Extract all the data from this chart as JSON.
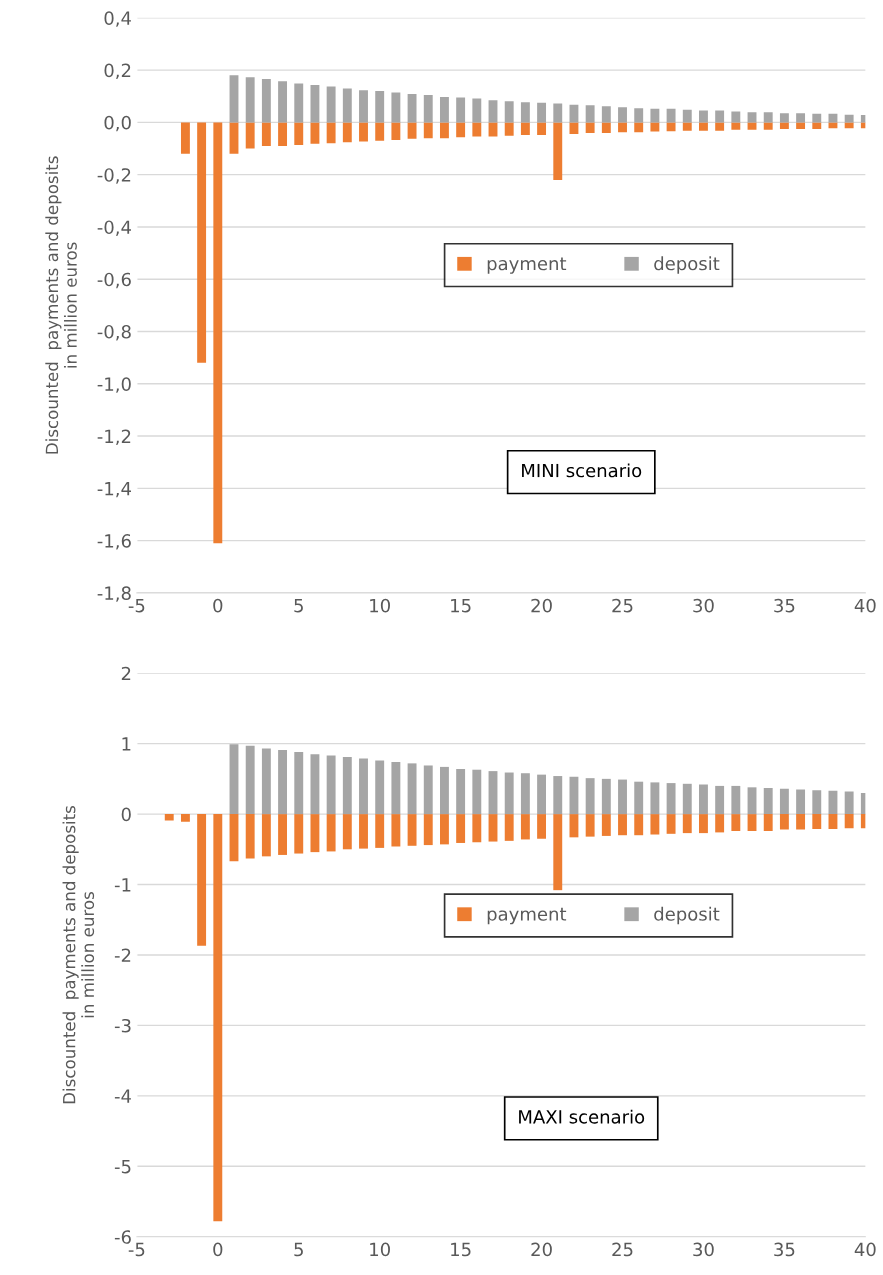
{
  "chart_data": [
    {
      "type": "bar",
      "ylabel": "Discounted  payments and deposits\nin million euros",
      "annotations": [
        "MINI scenario"
      ],
      "legend": "center",
      "grid": "y",
      "xlim": [
        -5,
        40
      ],
      "xticks": [
        -5,
        0,
        5,
        10,
        15,
        20,
        25,
        30,
        35,
        40
      ],
      "ylim": [
        -1.8,
        0.4
      ],
      "yticks": [
        {
          "value": -1.8,
          "label": "-1,8"
        },
        {
          "value": -1.6,
          "label": "-1,6"
        },
        {
          "value": -1.4,
          "label": "-1,4"
        },
        {
          "value": -1.2,
          "label": "-1,2"
        },
        {
          "value": -1.0,
          "label": "-1,0"
        },
        {
          "value": -0.8,
          "label": "-0,8"
        },
        {
          "value": -0.6,
          "label": "-0,6"
        },
        {
          "value": -0.4,
          "label": "-0,4"
        },
        {
          "value": -0.2,
          "label": "-0,2"
        },
        {
          "value": 0,
          "label": "0,0"
        },
        {
          "value": 0.2,
          "label": "0,2"
        },
        {
          "value": 0.4,
          "label": "0,4"
        }
      ],
      "series": [
        {
          "name": "payment",
          "color": "#ed7d31",
          "x": [
            -2,
            -1,
            0,
            1,
            2,
            3,
            4,
            5,
            6,
            7,
            8,
            9,
            10,
            11,
            12,
            13,
            14,
            15,
            16,
            17,
            18,
            19,
            20,
            21,
            22,
            23,
            24,
            25,
            26,
            27,
            28,
            29,
            30,
            31,
            32,
            33,
            34,
            35,
            36,
            37,
            38,
            39,
            40
          ],
          "values": [
            -0.12,
            -0.92,
            -1.61,
            -0.12,
            -0.1,
            -0.09,
            -0.09,
            -0.086,
            -0.082,
            -0.08,
            -0.076,
            -0.073,
            -0.07,
            -0.067,
            -0.063,
            -0.061,
            -0.061,
            -0.057,
            -0.054,
            -0.054,
            -0.051,
            -0.048,
            -0.048,
            -0.22,
            -0.044,
            -0.041,
            -0.041,
            -0.038,
            -0.038,
            -0.035,
            -0.034,
            -0.032,
            -0.032,
            -0.032,
            -0.028,
            -0.028,
            -0.028,
            -0.025,
            -0.025,
            -0.025,
            -0.022,
            -0.022,
            -0.022
          ]
        },
        {
          "name": "deposit",
          "color": "#a5a5a5",
          "x": [
            1,
            2,
            3,
            4,
            5,
            6,
            7,
            8,
            9,
            10,
            11,
            12,
            13,
            14,
            15,
            16,
            17,
            18,
            19,
            20,
            21,
            22,
            23,
            24,
            25,
            26,
            27,
            28,
            29,
            30,
            31,
            32,
            33,
            34,
            35,
            36,
            37,
            38,
            39,
            40
          ],
          "values": [
            0.18,
            0.173,
            0.166,
            0.157,
            0.149,
            0.143,
            0.137,
            0.13,
            0.123,
            0.12,
            0.114,
            0.109,
            0.105,
            0.097,
            0.095,
            0.091,
            0.085,
            0.081,
            0.077,
            0.075,
            0.072,
            0.068,
            0.066,
            0.062,
            0.058,
            0.054,
            0.052,
            0.052,
            0.048,
            0.046,
            0.046,
            0.042,
            0.039,
            0.039,
            0.035,
            0.035,
            0.033,
            0.033,
            0.029,
            0.028
          ]
        }
      ]
    },
    {
      "type": "bar",
      "ylabel": "Discounted  payments and deposits\nin million euros",
      "annotations": [
        "MAXI scenario"
      ],
      "legend": "center",
      "grid": "y",
      "xlim": [
        -5,
        40
      ],
      "xticks": [
        -5,
        0,
        5,
        10,
        15,
        20,
        25,
        30,
        35,
        40
      ],
      "ylim": [
        -6,
        2
      ],
      "yticks": [
        -6,
        -5,
        -4,
        -3,
        -2,
        -1,
        0,
        1,
        2
      ],
      "series": [
        {
          "name": "payment",
          "color": "#ed7d31",
          "x": [
            -3,
            -2,
            -1,
            0,
            1,
            2,
            3,
            4,
            5,
            6,
            7,
            8,
            9,
            10,
            11,
            12,
            13,
            14,
            15,
            16,
            17,
            18,
            19,
            20,
            21,
            22,
            23,
            24,
            25,
            26,
            27,
            28,
            29,
            30,
            31,
            32,
            33,
            34,
            35,
            36,
            37,
            38,
            39,
            40
          ],
          "values": [
            -0.09,
            -0.11,
            -1.87,
            -5.78,
            -0.67,
            -0.63,
            -0.6,
            -0.58,
            -0.56,
            -0.54,
            -0.53,
            -0.5,
            -0.49,
            -0.48,
            -0.46,
            -0.45,
            -0.44,
            -0.43,
            -0.41,
            -0.4,
            -0.39,
            -0.38,
            -0.36,
            -0.35,
            -1.08,
            -0.33,
            -0.32,
            -0.31,
            -0.3,
            -0.3,
            -0.29,
            -0.28,
            -0.27,
            -0.27,
            -0.26,
            -0.24,
            -0.24,
            -0.24,
            -0.22,
            -0.22,
            -0.21,
            -0.21,
            -0.2,
            -0.2
          ]
        },
        {
          "name": "deposit",
          "color": "#a5a5a5",
          "x": [
            1,
            2,
            3,
            4,
            5,
            6,
            7,
            8,
            9,
            10,
            11,
            12,
            13,
            14,
            15,
            16,
            17,
            18,
            19,
            20,
            21,
            22,
            23,
            24,
            25,
            26,
            27,
            28,
            29,
            30,
            31,
            32,
            33,
            34,
            35,
            36,
            37,
            38,
            39,
            40
          ],
          "values": [
            0.99,
            0.97,
            0.93,
            0.91,
            0.88,
            0.85,
            0.83,
            0.81,
            0.79,
            0.76,
            0.74,
            0.72,
            0.69,
            0.67,
            0.64,
            0.63,
            0.61,
            0.59,
            0.58,
            0.56,
            0.54,
            0.53,
            0.51,
            0.5,
            0.49,
            0.46,
            0.45,
            0.44,
            0.43,
            0.42,
            0.4,
            0.4,
            0.38,
            0.37,
            0.36,
            0.35,
            0.34,
            0.33,
            0.32,
            0.3
          ]
        }
      ]
    }
  ]
}
